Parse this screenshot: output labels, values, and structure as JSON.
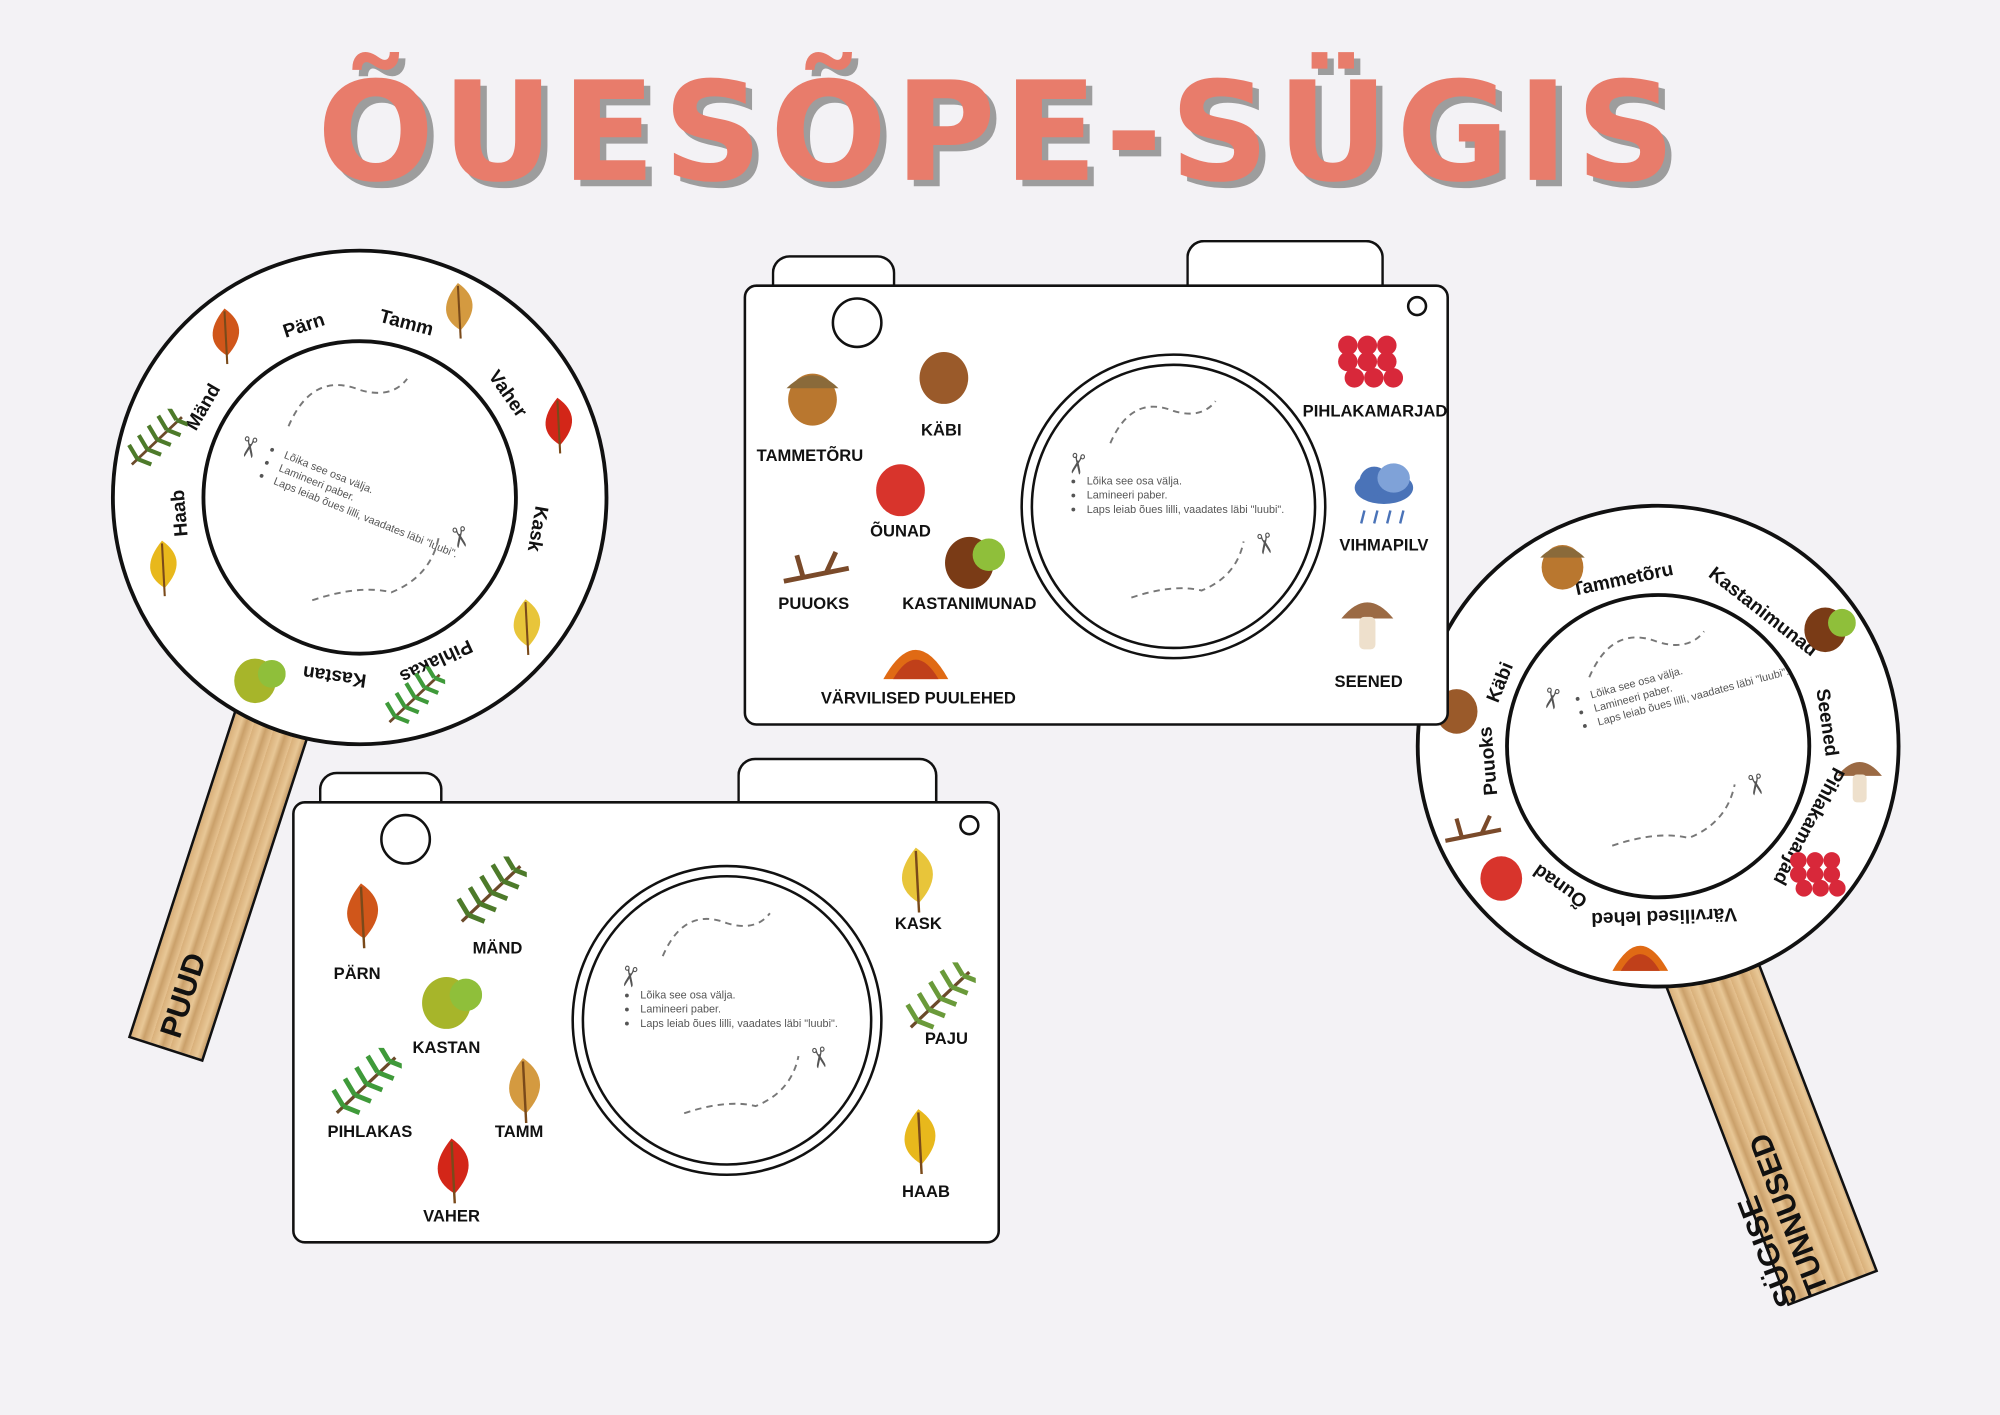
{
  "title": "ÕUESÕPE-SÜGIS",
  "instructions": [
    "Lõika see osa välja.",
    "Lamineeri paber.",
    "Laps leiab õues lilli, vaadates läbi \"luubi\"."
  ],
  "magnifier_trees": {
    "handle_label": "PUUD",
    "labels": [
      "Pärn",
      "Tamm",
      "Vaher",
      "Kask",
      "Pihlakas",
      "Kastan",
      "Haab",
      "Mänd"
    ]
  },
  "magnifier_autumn": {
    "handle_label_lines": [
      "SÜGISE",
      "TUNNUSED"
    ],
    "labels": [
      "Tammetõru",
      "Kastanimunad",
      "Seened",
      "Pihlakamarjad",
      "Värvilised lehed",
      "Õunad",
      "Puuoks",
      "Käbi"
    ]
  },
  "camera_autumn": {
    "items": [
      {
        "label": "TAMMETÕRU",
        "icon": "acorn-icon",
        "color": "#b9772f"
      },
      {
        "label": "KÄBI",
        "icon": "pinecone-icon",
        "color": "#9a5a2a"
      },
      {
        "label": "ÕUNAD",
        "icon": "apple-icon",
        "color": "#d8342c"
      },
      {
        "label": "PUUOKS",
        "icon": "branch-icon",
        "color": "#7a4a2a"
      },
      {
        "label": "KASTANIMUNAD",
        "icon": "chestnut-icon",
        "color": "#7a3b16"
      },
      {
        "label": "VÄRVILISED PUULEHED",
        "icon": "leaf-pile-icon",
        "color": "#e06a14"
      },
      {
        "label": "PIHLAKAMARJAD",
        "icon": "rowan-berries-icon",
        "color": "#d8283a"
      },
      {
        "label": "VIHMAPILV",
        "icon": "rain-cloud-icon",
        "color": "#4a73b8"
      },
      {
        "label": "SEENED",
        "icon": "mushroom-icon",
        "color": "#9b6a44"
      }
    ]
  },
  "camera_trees": {
    "items": [
      {
        "label": "PÄRN",
        "icon": "linden-leaf-icon",
        "color": "#d0561a"
      },
      {
        "label": "MÄND",
        "icon": "pine-branch-icon",
        "color": "#4d7a2a"
      },
      {
        "label": "KASTAN",
        "icon": "chestnut-leaf-icon",
        "color": "#a7b52a"
      },
      {
        "label": "PIHLAKAS",
        "icon": "rowan-leaf-icon",
        "color": "#3f9a3a"
      },
      {
        "label": "TAMM",
        "icon": "oak-leaf-icon",
        "color": "#d49a40"
      },
      {
        "label": "VAHER",
        "icon": "maple-leaf-icon",
        "color": "#d32618"
      },
      {
        "label": "KASK",
        "icon": "birch-leaf-icon",
        "color": "#e8c53a"
      },
      {
        "label": "PAJU",
        "icon": "willow-branch-icon",
        "color": "#6a9a3a"
      },
      {
        "label": "HAAB",
        "icon": "aspen-leaf-icon",
        "color": "#e8b81c"
      }
    ]
  },
  "colors": {
    "title": "#e87c6b",
    "background": "#f3f2f5",
    "handle": "#e0b985"
  }
}
